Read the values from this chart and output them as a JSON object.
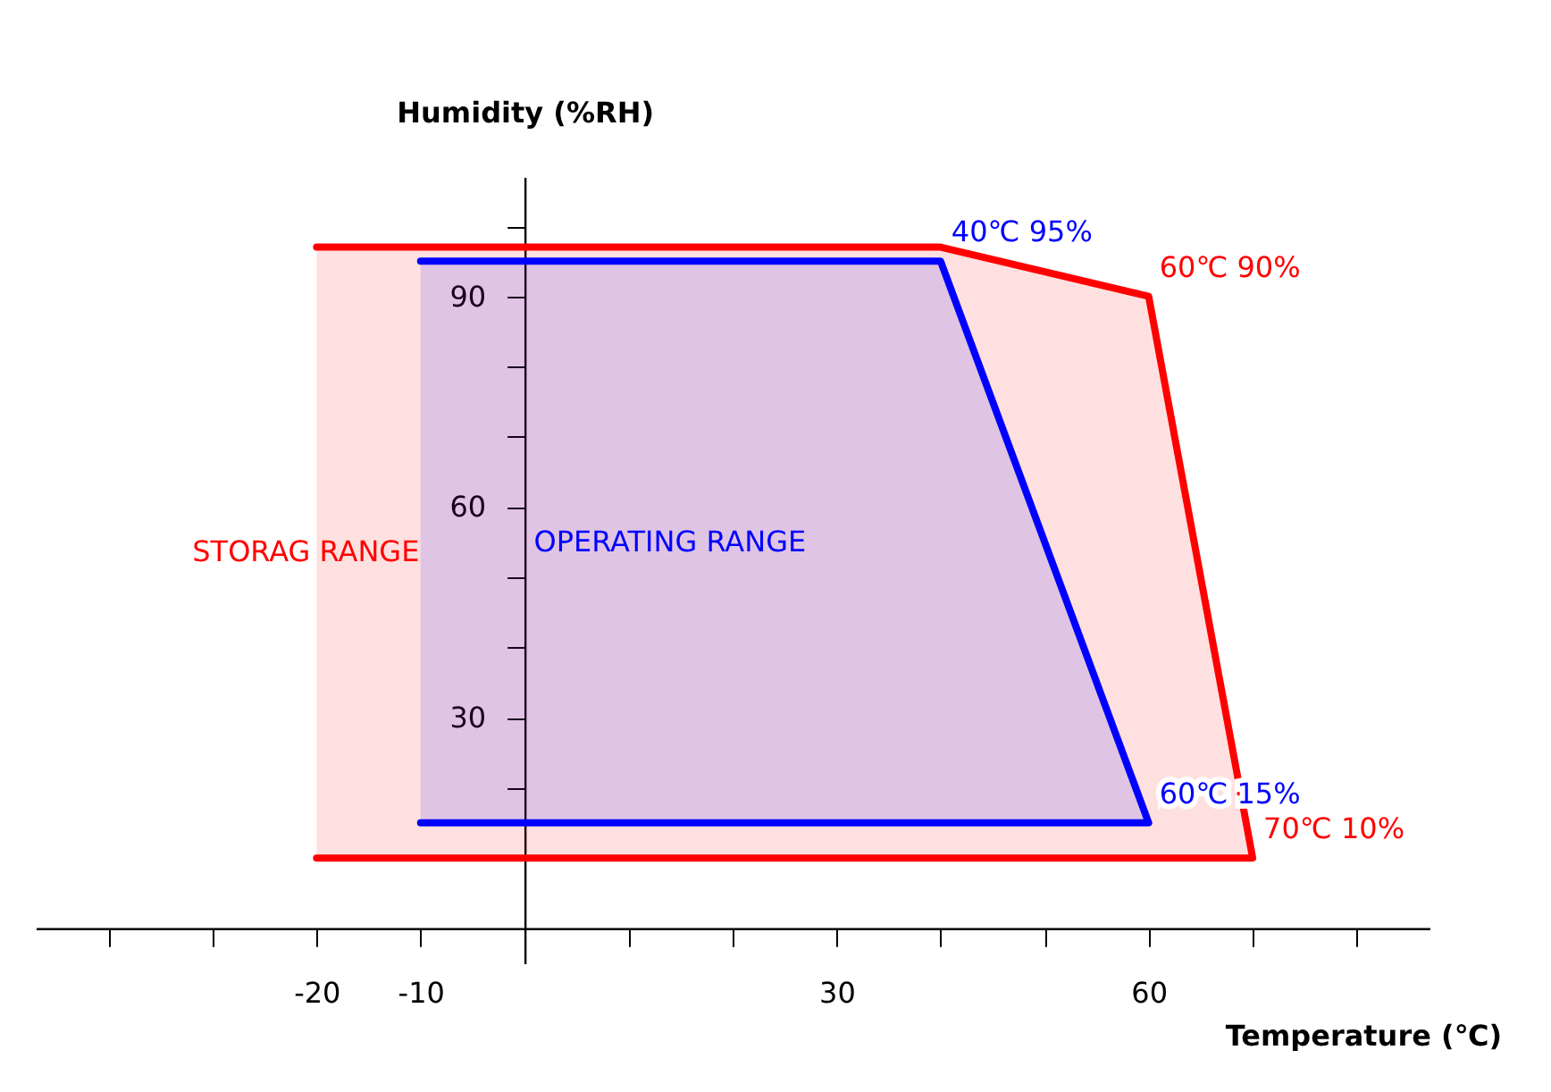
{
  "chart_data": {
    "type": "line",
    "xlabel": "Temperature (℃)",
    "ylabel": "Humidity (%RH)",
    "xlim": [
      -47,
      87
    ],
    "ylim": [
      -5,
      107
    ],
    "xticks": [
      {
        "value": -40,
        "label": null
      },
      {
        "value": -30,
        "label": null
      },
      -20,
      -10,
      {
        "value": 10,
        "label": null
      },
      {
        "value": 20,
        "label": null
      },
      30,
      {
        "value": 40,
        "label": null
      },
      {
        "value": 50,
        "label": null
      },
      60,
      {
        "value": 70,
        "label": null
      },
      {
        "value": 80,
        "label": null
      }
    ],
    "yticks": [
      {
        "value": 10,
        "label": null
      },
      {
        "value": 20,
        "label": null
      },
      30,
      {
        "value": 40,
        "label": null
      },
      {
        "value": 50,
        "label": null
      },
      60,
      {
        "value": 70,
        "label": null
      },
      {
        "value": 80,
        "label": null
      },
      90,
      {
        "value": 100,
        "label": null
      }
    ],
    "grid": false,
    "legend": false,
    "series": [
      {
        "name": "STORAG RANGE",
        "color": "#ff0000",
        "x": [
          -20,
          40,
          60,
          70,
          -20
        ],
        "values": [
          97,
          97,
          90,
          10,
          10
        ],
        "lower": [
          10,
          10,
          10,
          10,
          10
        ],
        "upper": [
          97,
          97,
          90,
          10,
          10
        ]
      },
      {
        "name": "OPERATING RANGE",
        "color": "#0000ff",
        "x": [
          -10,
          40,
          60,
          -10
        ],
        "values": [
          95,
          95,
          15,
          15
        ],
        "lower": [
          15,
          15,
          15,
          15
        ],
        "upper": [
          95,
          95,
          15,
          15
        ]
      }
    ],
    "annotations": [
      {
        "text": "40℃ 95%",
        "x": 40,
        "y": 95
      },
      {
        "text": "60℃ 90%",
        "x": 60,
        "y": 90
      },
      {
        "text": "60℃ 15%",
        "x": 60,
        "y": 15
      },
      {
        "text": "70℃ 10%",
        "x": 70,
        "y": 10
      }
    ]
  }
}
